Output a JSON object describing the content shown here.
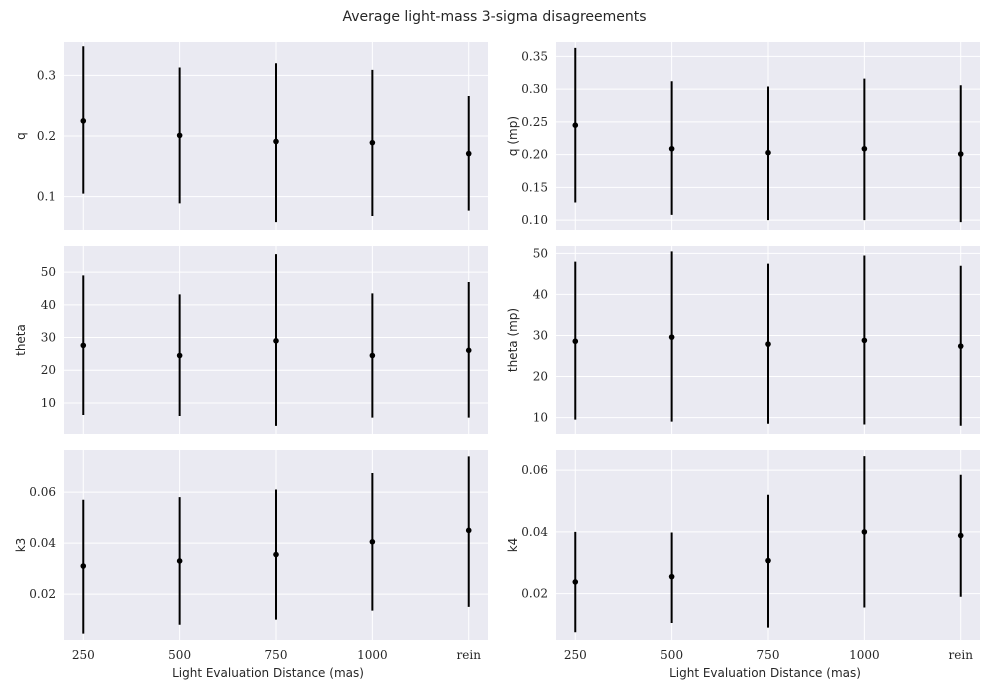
{
  "title": "Average light-mass 3-sigma disagreements",
  "xlabel": "Light Evaluation Distance (mas)",
  "colors": {
    "panel_bg": "#eaeaf2",
    "grid": "#ffffff",
    "marker": "#000000"
  },
  "chart_data": [
    {
      "type": "errorbar",
      "ylabel": "q",
      "categories": [
        "250",
        "500",
        "750",
        "1000",
        "rein"
      ],
      "values": [
        0.225,
        0.201,
        0.191,
        0.189,
        0.171
      ],
      "lower": [
        0.105,
        0.089,
        0.058,
        0.068,
        0.077
      ],
      "upper": [
        0.348,
        0.313,
        0.32,
        0.309,
        0.266
      ],
      "ylim": [
        0.045,
        0.355
      ],
      "yticks": [
        0.1,
        0.2,
        0.3
      ],
      "ytick_labels": [
        "0.1",
        "0.2",
        "0.3"
      ]
    },
    {
      "type": "errorbar",
      "ylabel": "q (mp)",
      "categories": [
        "250",
        "500",
        "750",
        "1000",
        "rein"
      ],
      "values": [
        0.245,
        0.209,
        0.203,
        0.209,
        0.201
      ],
      "lower": [
        0.127,
        0.108,
        0.1,
        0.1,
        0.097
      ],
      "upper": [
        0.363,
        0.312,
        0.304,
        0.316,
        0.306
      ],
      "ylim": [
        0.085,
        0.372
      ],
      "yticks": [
        0.1,
        0.15,
        0.2,
        0.25,
        0.3,
        0.35
      ],
      "ytick_labels": [
        "0.10",
        "0.15",
        "0.20",
        "0.25",
        "0.30",
        "0.35"
      ]
    },
    {
      "type": "errorbar",
      "ylabel": "theta",
      "categories": [
        "250",
        "500",
        "750",
        "1000",
        "rein"
      ],
      "values": [
        27.6,
        24.5,
        29.0,
        24.5,
        26.1
      ],
      "lower": [
        6.3,
        6.0,
        3.0,
        5.5,
        5.5
      ],
      "upper": [
        49.0,
        43.2,
        55.5,
        43.5,
        47.0
      ],
      "ylim": [
        0.5,
        58.0
      ],
      "yticks": [
        10,
        20,
        30,
        40,
        50
      ],
      "ytick_labels": [
        "10",
        "20",
        "30",
        "40",
        "50"
      ]
    },
    {
      "type": "errorbar",
      "ylabel": "theta (mp)",
      "categories": [
        "250",
        "500",
        "750",
        "1000",
        "rein"
      ],
      "values": [
        28.6,
        29.6,
        27.9,
        28.8,
        27.4
      ],
      "lower": [
        9.5,
        9.0,
        8.5,
        8.3,
        8.0
      ],
      "upper": [
        48.0,
        50.5,
        47.5,
        49.5,
        47.0
      ],
      "ylim": [
        6.0,
        51.8
      ],
      "yticks": [
        10,
        20,
        30,
        40,
        50
      ],
      "ytick_labels": [
        "10",
        "20",
        "30",
        "40",
        "50"
      ]
    },
    {
      "type": "errorbar",
      "ylabel": "k3",
      "categories": [
        "250",
        "500",
        "750",
        "1000",
        "rein"
      ],
      "values": [
        0.031,
        0.033,
        0.0355,
        0.0405,
        0.045
      ],
      "lower": [
        0.0045,
        0.008,
        0.01,
        0.0135,
        0.015
      ],
      "upper": [
        0.057,
        0.058,
        0.061,
        0.0675,
        0.074
      ],
      "ylim": [
        0.002,
        0.0765
      ],
      "yticks": [
        0.02,
        0.04,
        0.06
      ],
      "ytick_labels": [
        "0.02",
        "0.04",
        "0.06"
      ]
    },
    {
      "type": "errorbar",
      "ylabel": "k4",
      "categories": [
        "250",
        "500",
        "750",
        "1000",
        "rein"
      ],
      "values": [
        0.0238,
        0.0255,
        0.0307,
        0.04,
        0.0388
      ],
      "lower": [
        0.0075,
        0.0105,
        0.009,
        0.0155,
        0.019
      ],
      "upper": [
        0.04,
        0.0398,
        0.052,
        0.0645,
        0.0585
      ],
      "ylim": [
        0.005,
        0.0665
      ],
      "yticks": [
        0.02,
        0.04,
        0.06
      ],
      "ytick_labels": [
        "0.02",
        "0.04",
        "0.06"
      ]
    }
  ]
}
